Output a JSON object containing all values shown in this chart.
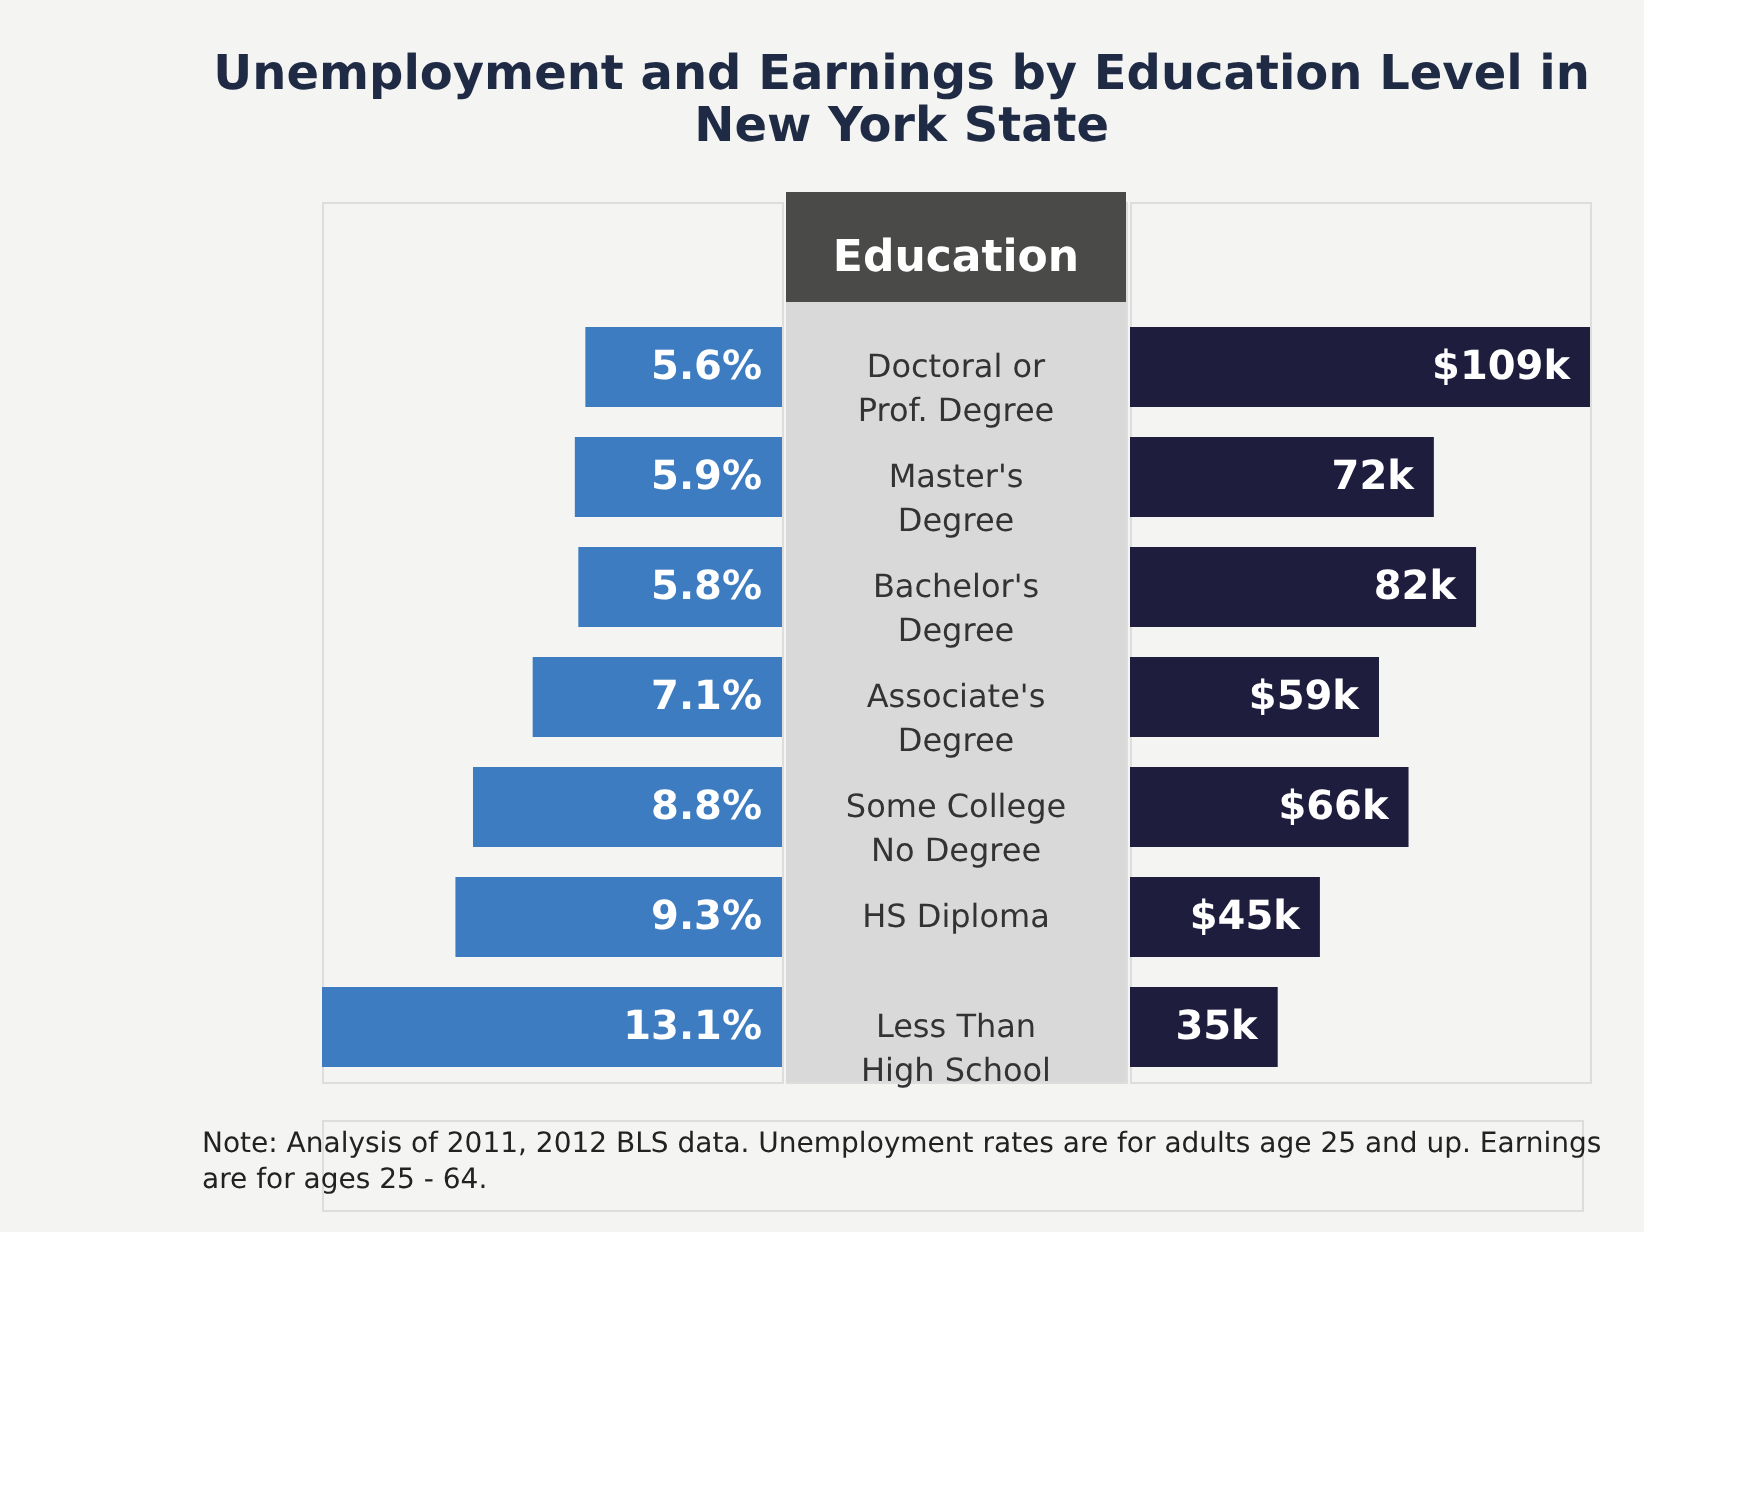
{
  "chart_data": [
    {
      "type": "bar",
      "orientation": "horizontal",
      "title": "Unemployment and Earnings by Education Level in\nNew York State",
      "ylabel": "Education",
      "categories": [
        "Doctoral or\nProf. Degree",
        "Master's\nDegree",
        "Bachelor's\nDegree",
        "Associate's\nDegree",
        "Some College\nNo Degree",
        "HS Diploma",
        "Less Than\nHigh School"
      ],
      "values": [
        5.6,
        5.9,
        5.8,
        7.1,
        8.8,
        9.3,
        13.1
      ],
      "value_labels": [
        "5.6%",
        "5.9%",
        "5.8%",
        "7.1%",
        "8.8%",
        "9.3%",
        "13.1%"
      ],
      "color": "#3d7cc0",
      "annotations": [
        "Note: Analysis of 2011, 2012 BLS data. Unemployment rates are for adults age 25 and up. Earnings\nare for ages 25 - 64."
      ]
    },
    {
      "type": "bar",
      "orientation": "horizontal",
      "values": [
        109,
        72,
        82,
        59,
        66,
        45,
        35
      ],
      "value_labels": [
        "$109k",
        "72k",
        "82k",
        "$59k",
        "$66k",
        "$45k",
        "35k"
      ],
      "color": "#1e1d3d"
    }
  ]
}
